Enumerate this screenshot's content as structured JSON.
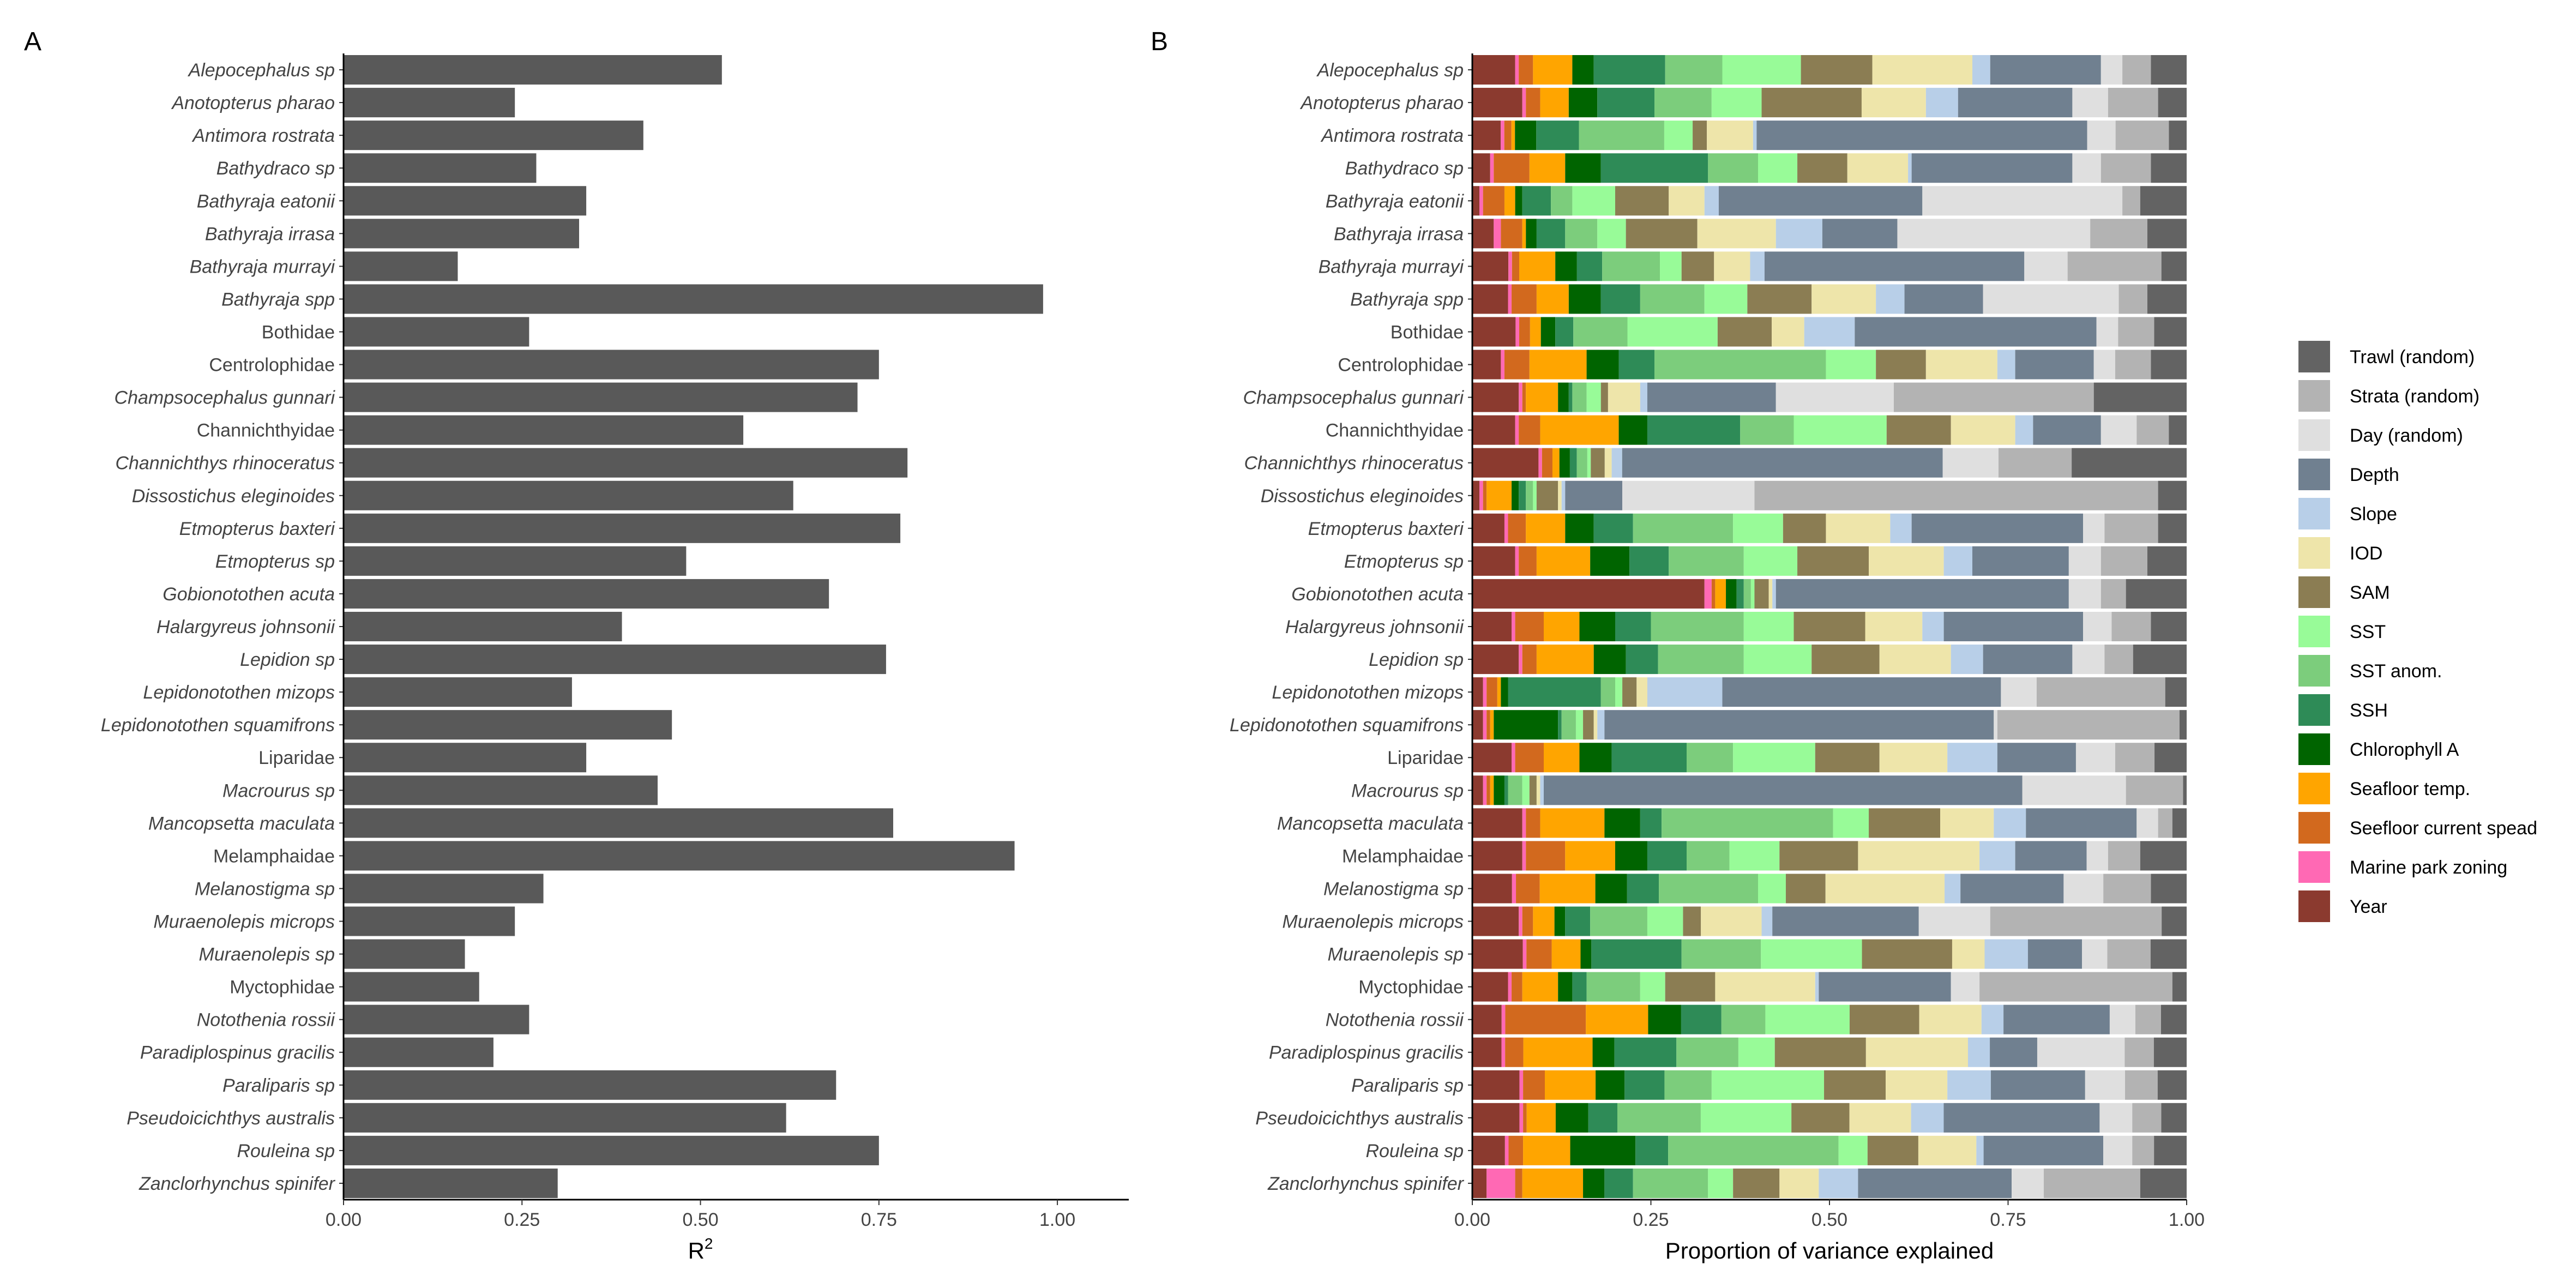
{
  "chart_data": [
    {
      "panel": "A",
      "type": "bar",
      "orientation": "horizontal",
      "xlabel": "R",
      "xlabel_sup": "2",
      "xlim": [
        0,
        1.1
      ],
      "xticks": [
        0,
        0.25,
        0.5,
        0.75,
        1
      ],
      "xtick_labels": [
        "0.00",
        "0.25",
        "0.50",
        "0.75",
        "1.00"
      ],
      "bar_color": "#595959",
      "categories": [
        {
          "label": "Alepocephalus sp",
          "italic": true
        },
        {
          "label": "Anotopterus pharao",
          "italic": true
        },
        {
          "label": "Antimora rostrata",
          "italic": true
        },
        {
          "label": "Bathydraco sp",
          "italic": true
        },
        {
          "label": "Bathyraja eatonii",
          "italic": true
        },
        {
          "label": "Bathyraja irrasa",
          "italic": true
        },
        {
          "label": "Bathyraja murrayi",
          "italic": true
        },
        {
          "label": "Bathyraja spp",
          "italic": true
        },
        {
          "label": "Bothidae",
          "italic": false
        },
        {
          "label": "Centrolophidae",
          "italic": false
        },
        {
          "label": "Champsocephalus gunnari",
          "italic": true
        },
        {
          "label": "Channichthyidae",
          "italic": false
        },
        {
          "label": "Channichthys rhinoceratus",
          "italic": true
        },
        {
          "label": "Dissostichus eleginoides",
          "italic": true
        },
        {
          "label": "Etmopterus baxteri",
          "italic": true
        },
        {
          "label": "Etmopterus sp",
          "italic": true
        },
        {
          "label": "Gobionotothen acuta",
          "italic": true
        },
        {
          "label": "Halargyreus johnsonii",
          "italic": true
        },
        {
          "label": "Lepidion sp",
          "italic": true
        },
        {
          "label": "Lepidonotothen mizops",
          "italic": true
        },
        {
          "label": "Lepidonotothen squamifrons",
          "italic": true
        },
        {
          "label": "Liparidae",
          "italic": false
        },
        {
          "label": "Macrourus sp",
          "italic": true
        },
        {
          "label": "Mancopsetta maculata",
          "italic": true
        },
        {
          "label": "Melamphaidae",
          "italic": false
        },
        {
          "label": "Melanostigma sp",
          "italic": true
        },
        {
          "label": "Muraenolepis microps",
          "italic": true
        },
        {
          "label": "Muraenolepis sp",
          "italic": true
        },
        {
          "label": "Myctophidae",
          "italic": false
        },
        {
          "label": "Notothenia rossii",
          "italic": true
        },
        {
          "label": "Paradiplospinus gracilis",
          "italic": true
        },
        {
          "label": "Paraliparis sp",
          "italic": true
        },
        {
          "label": "Pseudoicichthys australis",
          "italic": true
        },
        {
          "label": "Rouleina sp",
          "italic": true
        },
        {
          "label": "Zanclorhynchus spinifer",
          "italic": true
        }
      ],
      "values": [
        0.53,
        0.24,
        0.42,
        0.27,
        0.34,
        0.33,
        0.16,
        0.98,
        0.26,
        0.75,
        0.72,
        0.56,
        0.79,
        0.63,
        0.78,
        0.48,
        0.68,
        0.39,
        0.76,
        0.32,
        0.46,
        0.34,
        0.44,
        0.77,
        0.94,
        0.28,
        0.24,
        0.17,
        0.19,
        0.26,
        0.21,
        0.69,
        0.62,
        0.75,
        0.3
      ]
    },
    {
      "panel": "B",
      "type": "bar",
      "stacked": true,
      "orientation": "horizontal",
      "xlabel": "Proportion of variance explained",
      "xlim": [
        0,
        1
      ],
      "xticks": [
        0,
        0.25,
        0.5,
        0.75,
        1
      ],
      "xtick_labels": [
        "0.00",
        "0.25",
        "0.50",
        "0.75",
        "1.00"
      ],
      "legend_position": "right",
      "components": [
        "Year",
        "Marine park zoning",
        "Seefloor current spead",
        "Seafloor temp.",
        "Chlorophyll A",
        "SSH",
        "SST anom.",
        "SST",
        "SAM",
        "IOD",
        "Slope",
        "Depth",
        "Day (random)",
        "Strata (random)",
        "Trawl (random)"
      ],
      "series": [
        {
          "name": "Trawl (random)",
          "color": "#636363"
        },
        {
          "name": "Strata (random)",
          "color": "#b3b3b3"
        },
        {
          "name": "Day (random)",
          "color": "#dfdfdf"
        },
        {
          "name": "Depth",
          "color": "#708090"
        },
        {
          "name": "Slope",
          "color": "#b8cfe8"
        },
        {
          "name": "IOD",
          "color": "#eee5aa"
        },
        {
          "name": "SAM",
          "color": "#8b7d53"
        },
        {
          "name": "SST",
          "color": "#98fb98"
        },
        {
          "name": "SST anom.",
          "color": "#7ccd7c"
        },
        {
          "name": "SSH",
          "color": "#2e8b57"
        },
        {
          "name": "Chlorophyll A",
          "color": "#006400"
        },
        {
          "name": "Seafloor temp.",
          "color": "#ffa500"
        },
        {
          "name": "Seefloor current spead",
          "color": "#d2691e"
        },
        {
          "name": "Marine park zoning",
          "color": "#ff69b4"
        },
        {
          "name": "Year",
          "color": "#8b3a2f"
        }
      ],
      "rows": [
        [
          0.06,
          0.005,
          0.02,
          0.055,
          0.03,
          0.1,
          0.08,
          0.11,
          0.1,
          0.14,
          0.025,
          0.155,
          0.03,
          0.04,
          0.05
        ],
        [
          0.07,
          0.005,
          0.02,
          0.04,
          0.04,
          0.08,
          0.08,
          0.07,
          0.14,
          0.09,
          0.045,
          0.16,
          0.05,
          0.07,
          0.04
        ],
        [
          0.04,
          0.005,
          0.01,
          0.005,
          0.03,
          0.06,
          0.12,
          0.04,
          0.02,
          0.065,
          0.005,
          0.465,
          0.04,
          0.075,
          0.025
        ],
        [
          0.025,
          0.005,
          0.05,
          0.05,
          0.05,
          0.15,
          0.07,
          0.055,
          0.07,
          0.085,
          0.005,
          0.225,
          0.04,
          0.07,
          0.05
        ],
        [
          0.01,
          0.005,
          0.03,
          0.015,
          0.01,
          0.04,
          0.03,
          0.06,
          0.075,
          0.05,
          0.02,
          0.285,
          0.28,
          0.025,
          0.065
        ],
        [
          0.03,
          0.01,
          0.03,
          0.005,
          0.015,
          0.04,
          0.045,
          0.04,
          0.1,
          0.11,
          0.065,
          0.105,
          0.27,
          0.08,
          0.055
        ],
        [
          0.05,
          0.005,
          0.01,
          0.05,
          0.03,
          0.035,
          0.08,
          0.03,
          0.045,
          0.05,
          0.02,
          0.36,
          0.06,
          0.13,
          0.035
        ],
        [
          0.05,
          0.005,
          0.035,
          0.045,
          0.045,
          0.055,
          0.09,
          0.06,
          0.09,
          0.09,
          0.04,
          0.11,
          0.19,
          0.04,
          0.055
        ],
        [
          0.06,
          0.005,
          0.015,
          0.015,
          0.02,
          0.025,
          0.075,
          0.125,
          0.075,
          0.045,
          0.07,
          0.335,
          0.03,
          0.05,
          0.045
        ],
        [
          0.04,
          0.005,
          0.035,
          0.08,
          0.045,
          0.05,
          0.24,
          0.07,
          0.07,
          0.1,
          0.025,
          0.11,
          0.03,
          0.05,
          0.05
        ],
        [
          0.065,
          0.005,
          0.005,
          0.045,
          0.015,
          0.005,
          0.02,
          0.02,
          0.01,
          0.045,
          0.01,
          0.18,
          0.165,
          0.28,
          0.13
        ],
        [
          0.06,
          0.005,
          0.03,
          0.11,
          0.04,
          0.13,
          0.075,
          0.13,
          0.09,
          0.09,
          0.025,
          0.095,
          0.05,
          0.045,
          0.025
        ],
        [
          0.095,
          0.005,
          0.015,
          0.01,
          0.015,
          0.01,
          0.015,
          0.005,
          0.02,
          0.01,
          0.015,
          0.46,
          0.08,
          0.105,
          0.165
        ],
        [
          0.01,
          0.005,
          0.005,
          0.035,
          0.01,
          0.01,
          0.01,
          0.005,
          0.03,
          0.005,
          0.005,
          0.08,
          0.185,
          0.565,
          0.04
        ],
        [
          0.045,
          0.005,
          0.025,
          0.055,
          0.04,
          0.055,
          0.14,
          0.07,
          0.06,
          0.09,
          0.03,
          0.24,
          0.03,
          0.075,
          0.04
        ],
        [
          0.06,
          0.005,
          0.025,
          0.075,
          0.055,
          0.055,
          0.105,
          0.075,
          0.1,
          0.105,
          0.04,
          0.135,
          0.045,
          0.065,
          0.055
        ],
        [
          0.325,
          0.01,
          0.005,
          0.015,
          0.015,
          0.01,
          0.01,
          0.005,
          0.02,
          0.005,
          0.005,
          0.41,
          0.045,
          0.035,
          0.085
        ],
        [
          0.055,
          0.005,
          0.04,
          0.05,
          0.05,
          0.05,
          0.13,
          0.07,
          0.1,
          0.08,
          0.03,
          0.195,
          0.04,
          0.055,
          0.05
        ],
        [
          0.065,
          0.005,
          0.02,
          0.08,
          0.045,
          0.045,
          0.12,
          0.095,
          0.095,
          0.1,
          0.045,
          0.125,
          0.045,
          0.04,
          0.075
        ],
        [
          0.015,
          0.005,
          0.015,
          0.005,
          0.01,
          0.13,
          0.02,
          0.01,
          0.02,
          0.015,
          0.105,
          0.39,
          0.05,
          0.18,
          0.03
        ],
        [
          0.015,
          0.005,
          0.005,
          0.005,
          0.09,
          0.005,
          0.02,
          0.01,
          0.015,
          0.005,
          0.01,
          0.545,
          0.005,
          0.255,
          0.01
        ],
        [
          0.055,
          0.005,
          0.04,
          0.05,
          0.045,
          0.105,
          0.065,
          0.115,
          0.09,
          0.095,
          0.07,
          0.11,
          0.055,
          0.055,
          0.045
        ],
        [
          0.015,
          0.005,
          0.005,
          0.005,
          0.015,
          0.005,
          0.02,
          0.01,
          0.01,
          0.005,
          0.005,
          0.67,
          0.145,
          0.08,
          0.005
        ],
        [
          0.07,
          0.005,
          0.02,
          0.09,
          0.05,
          0.03,
          0.24,
          0.05,
          0.1,
          0.075,
          0.045,
          0.155,
          0.03,
          0.02,
          0.02
        ],
        [
          0.07,
          0.005,
          0.055,
          0.07,
          0.045,
          0.055,
          0.06,
          0.07,
          0.11,
          0.17,
          0.05,
          0.1,
          0.03,
          0.045,
          0.065
        ],
        [
          0.05,
          0.005,
          0.03,
          0.07,
          0.04,
          0.04,
          0.125,
          0.035,
          0.05,
          0.15,
          0.02,
          0.13,
          0.05,
          0.06,
          0.045
        ],
        [
          0.065,
          0.005,
          0.015,
          0.03,
          0.015,
          0.035,
          0.08,
          0.05,
          0.025,
          0.085,
          0.015,
          0.205,
          0.1,
          0.24,
          0.035
        ],
        [
          0.07,
          0.005,
          0.035,
          0.04,
          0.015,
          0.125,
          0.11,
          0.14,
          0.125,
          0.045,
          0.06,
          0.075,
          0.035,
          0.06,
          0.05
        ],
        [
          0.05,
          0.005,
          0.015,
          0.05,
          0.02,
          0.02,
          0.075,
          0.035,
          0.07,
          0.14,
          0.005,
          0.185,
          0.04,
          0.27,
          0.02
        ],
        [
          0.04,
          0.005,
          0.11,
          0.085,
          0.045,
          0.055,
          0.06,
          0.115,
          0.095,
          0.085,
          0.03,
          0.145,
          0.035,
          0.035,
          0.035
        ],
        [
          0.04,
          0.005,
          0.025,
          0.095,
          0.03,
          0.085,
          0.085,
          0.05,
          0.125,
          0.14,
          0.03,
          0.065,
          0.12,
          0.04,
          0.045
        ],
        [
          0.065,
          0.005,
          0.03,
          0.07,
          0.04,
          0.055,
          0.065,
          0.155,
          0.085,
          0.085,
          0.06,
          0.13,
          0.055,
          0.045,
          0.04
        ],
        [
          0.065,
          0.005,
          0.005,
          0.04,
          0.045,
          0.04,
          0.115,
          0.125,
          0.08,
          0.085,
          0.045,
          0.215,
          0.045,
          0.04,
          0.035
        ],
        [
          0.045,
          0.005,
          0.02,
          0.065,
          0.09,
          0.045,
          0.235,
          0.04,
          0.07,
          0.08,
          0.01,
          0.165,
          0.04,
          0.03,
          0.045
        ],
        [
          0.02,
          0.04,
          0.01,
          0.085,
          0.03,
          0.04,
          0.105,
          0.035,
          0.065,
          0.055,
          0.055,
          0.215,
          0.045,
          0.135,
          0.065
        ]
      ]
    }
  ],
  "panels": {
    "a_tag": "A",
    "b_tag": "B"
  }
}
